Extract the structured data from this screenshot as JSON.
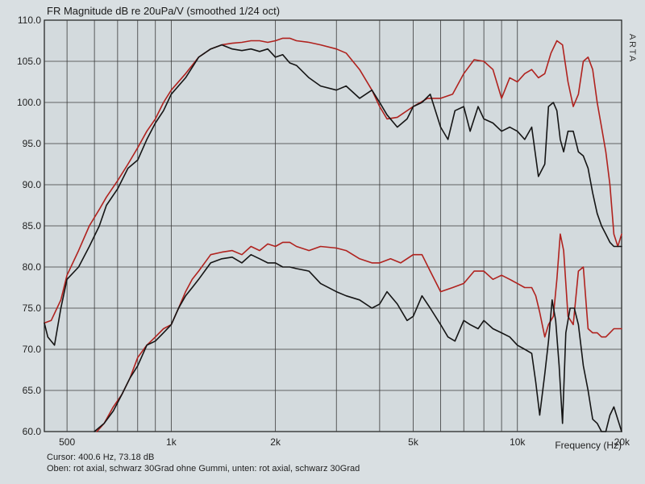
{
  "chart_data": {
    "type": "line",
    "title": "FR Magnitude dB re 20uPa/V (smoothed 1/24 oct)",
    "brand": "ARTA",
    "xlabel": "Frequency (Hz)",
    "xscale": "log",
    "xlim": [
      430,
      20000
    ],
    "ylim": [
      60,
      110
    ],
    "y_ticks": [
      "110.0",
      "105.0",
      "100.0",
      "95.0",
      "90.0",
      "85.0",
      "80.0",
      "75.0",
      "70.0",
      "65.0",
      "60.0"
    ],
    "x_tick_labels": [
      {
        "f": 500,
        "label": "500"
      },
      {
        "f": 1000,
        "label": "1k"
      },
      {
        "f": 2000,
        "label": "2k"
      },
      {
        "f": 5000,
        "label": "5k"
      },
      {
        "f": 10000,
        "label": "10k"
      },
      {
        "f": 20000,
        "label": "20k"
      }
    ],
    "grid": true,
    "cursor_text": "Cursor: 400.6 Hz, 73.18 dB",
    "caption": "Oben: rot axial, schwarz 30Grad ohne Gummi, unten: rot axial, schwarz 30Grad",
    "colors": {
      "red": "#b0221e",
      "black": "#151515",
      "grid": "#3a3a3a",
      "background": "#d9dfe2"
    },
    "series": [
      {
        "color": "red",
        "x": [
          430,
          450,
          480,
          500,
          540,
          580,
          620,
          650,
          700,
          750,
          800,
          850,
          900,
          950,
          1000,
          1100,
          1200,
          1300,
          1400,
          1500,
          1600,
          1700,
          1800,
          1900,
          2000,
          2100,
          2200,
          2300,
          2500,
          2700,
          3000,
          3200,
          3500,
          3800,
          4000,
          4200,
          4500,
          5000,
          5500,
          6000,
          6500,
          7000,
          7500,
          8000,
          8500,
          9000,
          9500,
          10000,
          10500,
          11000,
          11500,
          12000,
          12500,
          13000,
          13500,
          14000,
          14500,
          15000,
          15500,
          16000,
          16500,
          17000,
          17500,
          18000,
          18500,
          19000,
          19500,
          20000
        ],
        "y": [
          73.2,
          73.5,
          76,
          79,
          82,
          85,
          87,
          88.5,
          90.5,
          92.5,
          94.5,
          96.5,
          98,
          100,
          101.5,
          103.5,
          105.5,
          106.5,
          107,
          107.2,
          107.3,
          107.5,
          107.5,
          107.3,
          107.5,
          107.8,
          107.8,
          107.5,
          107.3,
          107,
          106.5,
          106,
          104,
          101.5,
          99.5,
          98,
          98.2,
          99.5,
          100.5,
          100.5,
          101,
          103.5,
          105.2,
          105,
          104,
          100.5,
          103,
          102.5,
          103.5,
          104,
          103,
          103.5,
          106,
          107.5,
          107,
          102.5,
          99.5,
          101,
          105,
          105.5,
          104,
          100,
          97,
          94,
          90,
          84,
          82.5,
          84
        ]
      },
      {
        "color": "black",
        "x": [
          430,
          440,
          460,
          480,
          500,
          540,
          580,
          620,
          650,
          700,
          750,
          800,
          850,
          900,
          950,
          1000,
          1100,
          1200,
          1300,
          1400,
          1500,
          1600,
          1700,
          1800,
          1900,
          2000,
          2100,
          2200,
          2300,
          2500,
          2700,
          3000,
          3200,
          3500,
          3800,
          4000,
          4200,
          4500,
          4800,
          5000,
          5300,
          5600,
          6000,
          6300,
          6600,
          7000,
          7300,
          7700,
          8000,
          8500,
          9000,
          9500,
          10000,
          10500,
          11000,
          11500,
          12000,
          12300,
          12700,
          13000,
          13300,
          13600,
          14000,
          14500,
          15000,
          15500,
          16000,
          16500,
          17000,
          17500,
          18000,
          18500,
          19000,
          20000
        ],
        "y": [
          73.2,
          71.5,
          70.5,
          75,
          78.5,
          80,
          82.5,
          85,
          87.5,
          89.5,
          92,
          93,
          95.5,
          97.5,
          99,
          101,
          103,
          105.5,
          106.5,
          107,
          106.5,
          106.3,
          106.5,
          106.2,
          106.5,
          105.5,
          105.8,
          104.8,
          104.5,
          103,
          102,
          101.5,
          102,
          100.5,
          101.5,
          100,
          98.5,
          97,
          98,
          99.5,
          100,
          101,
          97,
          95.5,
          99,
          99.5,
          96.5,
          99.5,
          98,
          97.5,
          96.5,
          97,
          96.5,
          95.5,
          97,
          91,
          92.5,
          99.5,
          100,
          99,
          95.5,
          94,
          96.5,
          96.5,
          94,
          93.5,
          92,
          89,
          86.5,
          85,
          84,
          83,
          82.5,
          82.5
        ]
      },
      {
        "color": "red",
        "x": [
          610,
          640,
          680,
          720,
          760,
          800,
          850,
          900,
          950,
          1000,
          1050,
          1100,
          1150,
          1200,
          1300,
          1400,
          1500,
          1600,
          1700,
          1800,
          1900,
          2000,
          2100,
          2200,
          2300,
          2500,
          2700,
          3000,
          3200,
          3500,
          3800,
          4000,
          4300,
          4600,
          5000,
          5300,
          5600,
          6000,
          6500,
          7000,
          7500,
          8000,
          8500,
          9000,
          9500,
          10000,
          10500,
          11000,
          11300,
          11600,
          12000,
          12300,
          12700,
          13000,
          13300,
          13600,
          14000,
          14500,
          15000,
          15500,
          16000,
          16500,
          17000,
          17500,
          18000,
          18500,
          19000,
          20000
        ],
        "y": [
          60,
          61,
          63,
          64.5,
          66.5,
          69,
          70.5,
          71.5,
          72.5,
          73,
          75,
          77,
          78.5,
          79.5,
          81.5,
          81.8,
          82,
          81.5,
          82.5,
          82,
          82.8,
          82.5,
          83,
          83,
          82.5,
          82,
          82.5,
          82.3,
          82,
          81,
          80.5,
          80.5,
          81,
          80.5,
          81.5,
          81.5,
          79.5,
          77,
          77.5,
          78,
          79.5,
          79.5,
          78.5,
          79,
          78.5,
          78,
          77.5,
          77.5,
          76.5,
          74.5,
          71.5,
          73,
          74,
          78.5,
          84,
          82,
          74,
          73,
          79.5,
          80,
          72.5,
          72,
          72,
          71.5,
          71.5,
          72,
          72.5,
          72.5
        ]
      },
      {
        "color": "black",
        "x": [
          600,
          640,
          680,
          720,
          760,
          800,
          850,
          900,
          950,
          1000,
          1050,
          1100,
          1150,
          1200,
          1300,
          1400,
          1500,
          1600,
          1700,
          1800,
          1900,
          2000,
          2100,
          2200,
          2300,
          2500,
          2700,
          3000,
          3200,
          3500,
          3800,
          4000,
          4200,
          4500,
          4800,
          5000,
          5300,
          5600,
          6000,
          6300,
          6600,
          7000,
          7300,
          7700,
          8000,
          8500,
          9000,
          9500,
          10000,
          10500,
          11000,
          11300,
          11600,
          12000,
          12300,
          12600,
          12900,
          13200,
          13500,
          13800,
          14200,
          14600,
          15000,
          15500,
          16000,
          16500,
          17000,
          17500,
          18000,
          18500,
          19000,
          20000
        ],
        "y": [
          60,
          61,
          62.5,
          64.5,
          66.5,
          68,
          70.5,
          71,
          72,
          73,
          75,
          76.5,
          77.5,
          78.5,
          80.5,
          81,
          81.2,
          80.5,
          81.5,
          81,
          80.5,
          80.5,
          80,
          80,
          79.8,
          79.5,
          78,
          77,
          76.5,
          76,
          75,
          75.5,
          77,
          75.5,
          73.5,
          74,
          76.5,
          75,
          73,
          71.5,
          71,
          73.5,
          73,
          72.5,
          73.5,
          72.5,
          72,
          71.5,
          70.5,
          70,
          69.5,
          66,
          62,
          67,
          71,
          76,
          73.5,
          68,
          61,
          72,
          75,
          75,
          73,
          68,
          65,
          61.5,
          61,
          60,
          60,
          62,
          63,
          60
        ]
      }
    ]
  }
}
